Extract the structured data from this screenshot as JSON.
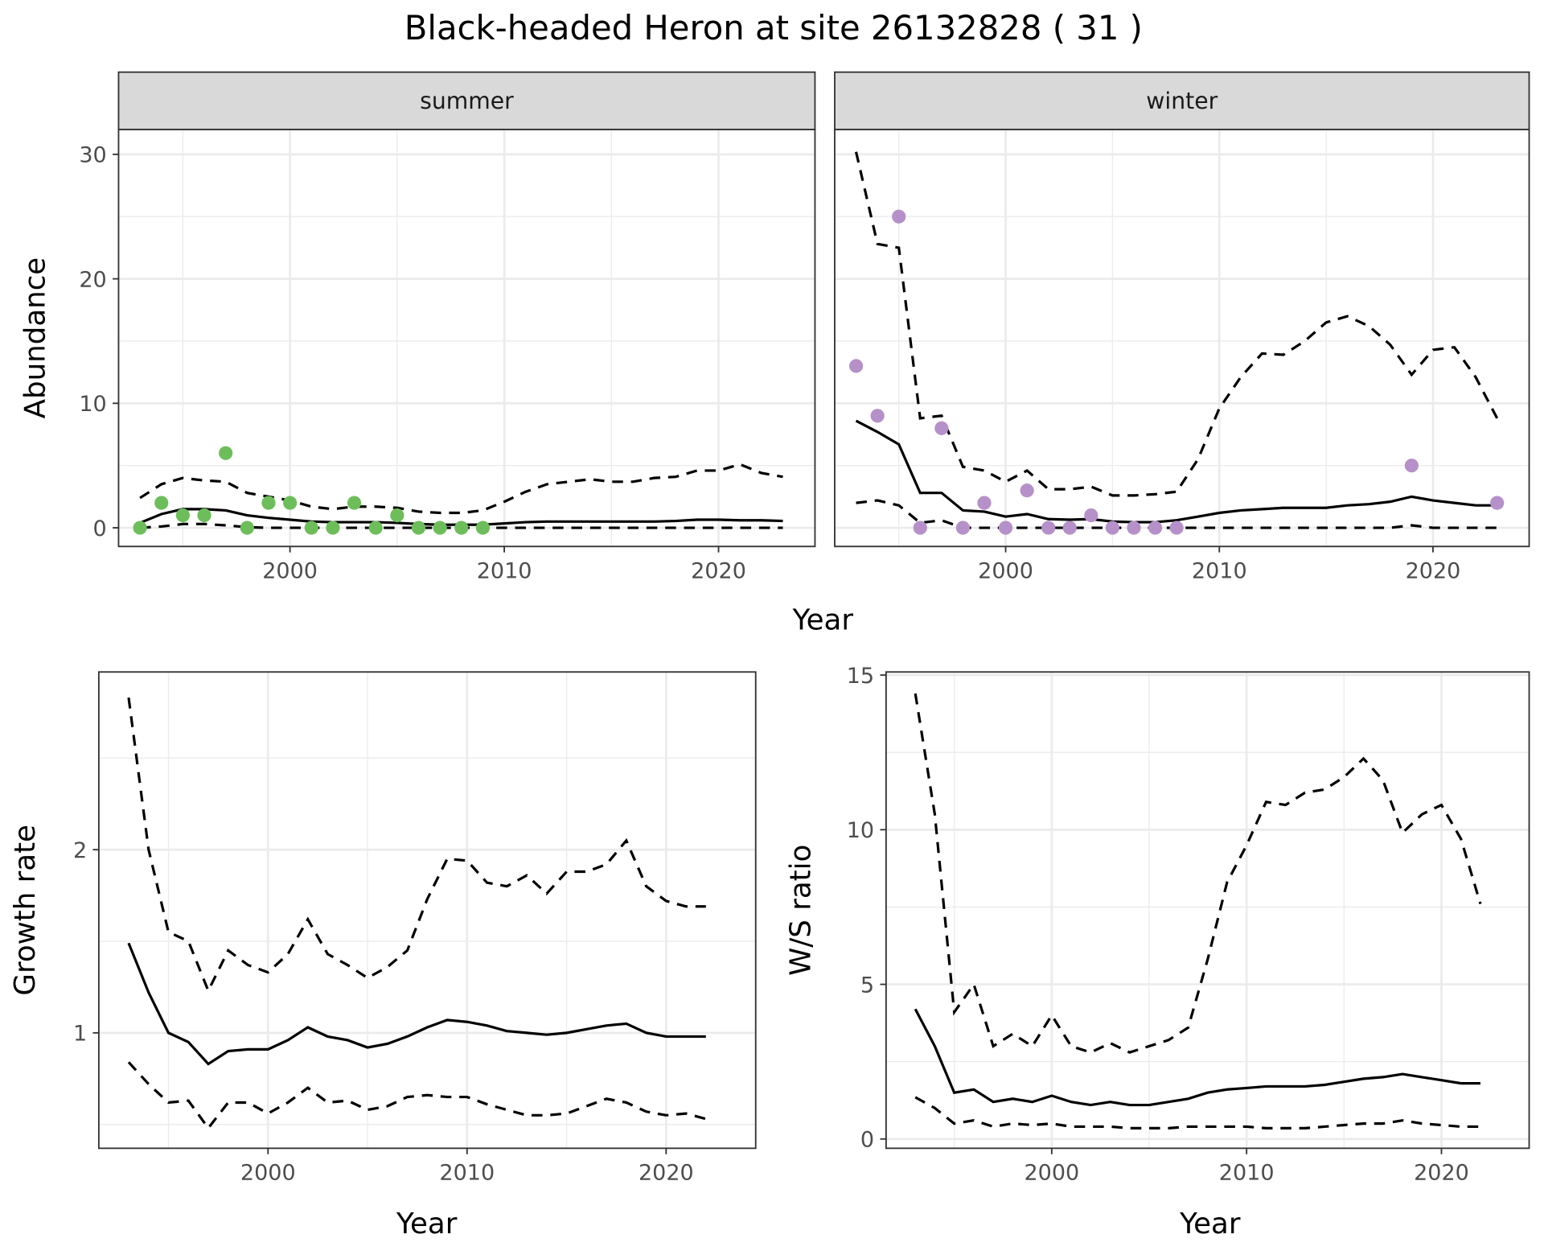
{
  "title": "Black-headed Heron at site 26132828 ( 31 )",
  "colors": {
    "summer": "#6dbe5b",
    "winter": "#b590c9",
    "grid": "#ebebeb",
    "strip": "#d9d9d9",
    "border": "#333333"
  },
  "chart_data": [
    {
      "type": "line+scatter",
      "facet": "summer",
      "xlabel": "Year",
      "ylabel": "Abundance",
      "xlim": [
        1992,
        2024.5
      ],
      "ylim": [
        -1.5,
        32
      ],
      "xticks": [
        2000,
        2010,
        2020
      ],
      "yticks": [
        0,
        10,
        20,
        30
      ],
      "grid": true,
      "years": [
        1993,
        1994,
        1995,
        1996,
        1997,
        1998,
        1999,
        2000,
        2001,
        2002,
        2003,
        2004,
        2005,
        2006,
        2007,
        2008,
        2009,
        2010,
        2011,
        2012,
        2013,
        2014,
        2015,
        2016,
        2017,
        2018,
        2019,
        2020,
        2021,
        2022,
        2023
      ],
      "mean": [
        0.4,
        1.1,
        1.5,
        1.5,
        1.4,
        1.0,
        0.8,
        0.65,
        0.5,
        0.45,
        0.45,
        0.45,
        0.4,
        0.3,
        0.25,
        0.25,
        0.25,
        0.35,
        0.45,
        0.5,
        0.5,
        0.5,
        0.5,
        0.5,
        0.5,
        0.55,
        0.65,
        0.65,
        0.6,
        0.6,
        0.55
      ],
      "upper": [
        2.4,
        3.5,
        4.0,
        3.8,
        3.7,
        2.8,
        2.5,
        2.2,
        1.7,
        1.5,
        1.7,
        1.7,
        1.6,
        1.3,
        1.2,
        1.2,
        1.4,
        2.1,
        2.9,
        3.5,
        3.7,
        3.9,
        3.7,
        3.7,
        4.0,
        4.1,
        4.6,
        4.6,
        5.1,
        4.4,
        4.1
      ],
      "lower": [
        0,
        0.1,
        0.3,
        0.3,
        0.2,
        0.05,
        0,
        0,
        0,
        0,
        0,
        0,
        0,
        0,
        0,
        0,
        0,
        0,
        0,
        0,
        0,
        0,
        0,
        0,
        0,
        0,
        0,
        0,
        0,
        0,
        0
      ],
      "points": {
        "x": [
          1993,
          1994,
          1995,
          1996,
          1997,
          1998,
          1999,
          2000,
          2001,
          2002,
          2003,
          2004,
          2005,
          2006,
          2007,
          2008,
          2009
        ],
        "y": [
          0,
          2,
          1,
          1,
          6,
          0,
          2,
          2,
          0,
          0,
          2,
          0,
          1,
          0,
          0,
          0,
          0
        ]
      }
    },
    {
      "type": "line+scatter",
      "facet": "winter",
      "xlabel": "Year",
      "ylabel": "Abundance",
      "xlim": [
        1992,
        2024.5
      ],
      "ylim": [
        -1.5,
        32
      ],
      "xticks": [
        2000,
        2010,
        2020
      ],
      "yticks": [
        0,
        10,
        20,
        30
      ],
      "grid": true,
      "years": [
        1993,
        1994,
        1995,
        1996,
        1997,
        1998,
        1999,
        2000,
        2001,
        2002,
        2003,
        2004,
        2005,
        2006,
        2007,
        2008,
        2009,
        2010,
        2011,
        2012,
        2013,
        2014,
        2015,
        2016,
        2017,
        2018,
        2019,
        2020,
        2021,
        2022,
        2023
      ],
      "mean": [
        8.6,
        7.7,
        6.7,
        2.8,
        2.8,
        1.4,
        1.3,
        0.9,
        1.1,
        0.7,
        0.65,
        0.7,
        0.5,
        0.45,
        0.45,
        0.6,
        0.9,
        1.2,
        1.4,
        1.5,
        1.6,
        1.6,
        1.6,
        1.8,
        1.9,
        2.1,
        2.5,
        2.2,
        2.0,
        1.8,
        1.8
      ],
      "upper": [
        30.2,
        22.8,
        22.5,
        8.8,
        9.0,
        4.9,
        4.6,
        3.7,
        4.6,
        3.1,
        3.1,
        3.3,
        2.6,
        2.6,
        2.7,
        2.9,
        5.5,
        9.6,
        12.1,
        14.0,
        13.9,
        15.0,
        16.5,
        17.0,
        16.2,
        14.7,
        12.3,
        14.3,
        14.5,
        12.1,
        8.8
      ],
      "lower": [
        2.0,
        2.2,
        1.8,
        0.4,
        0.6,
        0,
        0,
        0,
        0,
        0,
        0,
        0,
        0,
        0,
        0,
        0,
        0,
        0,
        0,
        0,
        0,
        0,
        0,
        0,
        0,
        0,
        0.2,
        0,
        0,
        0,
        0
      ],
      "points": {
        "x": [
          1993,
          1994,
          1995,
          1996,
          1997,
          1998,
          1999,
          2000,
          2001,
          2002,
          2003,
          2004,
          2005,
          2006,
          2007,
          2008,
          2019,
          2023
        ],
        "y": [
          13,
          9,
          25,
          0,
          8,
          0,
          2,
          0,
          3,
          0,
          0,
          1,
          0,
          0,
          0,
          0,
          5,
          2
        ]
      }
    },
    {
      "type": "line",
      "xlabel": "Year",
      "ylabel": "Growth rate",
      "xlim": [
        1991.5,
        2024.5
      ],
      "ylim": [
        0.37,
        2.97
      ],
      "xticks": [
        2000,
        2010,
        2020
      ],
      "yticks": [
        1,
        2
      ],
      "grid": true,
      "years": [
        1993,
        1994,
        1995,
        1996,
        1997,
        1998,
        1999,
        2000,
        2001,
        2002,
        2003,
        2004,
        2005,
        2006,
        2007,
        2008,
        2009,
        2010,
        2011,
        2012,
        2013,
        2014,
        2015,
        2016,
        2017,
        2018,
        2019,
        2020,
        2021,
        2022
      ],
      "mean": [
        1.49,
        1.22,
        1.0,
        0.95,
        0.83,
        0.9,
        0.91,
        0.91,
        0.96,
        1.03,
        0.98,
        0.96,
        0.92,
        0.94,
        0.98,
        1.03,
        1.07,
        1.06,
        1.04,
        1.01,
        1.0,
        0.99,
        1.0,
        1.02,
        1.04,
        1.05,
        1.0,
        0.98,
        0.98,
        0.98
      ],
      "upper": [
        2.83,
        2.0,
        1.55,
        1.5,
        1.23,
        1.45,
        1.37,
        1.33,
        1.43,
        1.62,
        1.43,
        1.37,
        1.3,
        1.36,
        1.45,
        1.73,
        1.95,
        1.94,
        1.82,
        1.8,
        1.86,
        1.76,
        1.88,
        1.88,
        1.92,
        2.05,
        1.8,
        1.72,
        1.69,
        1.69
      ],
      "lower": [
        0.84,
        0.72,
        0.62,
        0.63,
        0.48,
        0.62,
        0.62,
        0.56,
        0.62,
        0.7,
        0.62,
        0.63,
        0.58,
        0.6,
        0.65,
        0.66,
        0.65,
        0.65,
        0.61,
        0.58,
        0.55,
        0.55,
        0.56,
        0.6,
        0.64,
        0.62,
        0.57,
        0.55,
        0.56,
        0.53
      ]
    },
    {
      "type": "line",
      "xlabel": "Year",
      "ylabel": "W/S ratio",
      "xlim": [
        1991.5,
        2024.5
      ],
      "ylim": [
        -0.3,
        15.1
      ],
      "xticks": [
        2000,
        2010,
        2020
      ],
      "yticks": [
        0,
        5,
        10,
        15
      ],
      "grid": true,
      "years": [
        1993,
        1994,
        1995,
        1996,
        1997,
        1998,
        1999,
        2000,
        2001,
        2002,
        2003,
        2004,
        2005,
        2006,
        2007,
        2008,
        2009,
        2010,
        2011,
        2012,
        2013,
        2014,
        2015,
        2016,
        2017,
        2018,
        2019,
        2020,
        2021,
        2022
      ],
      "mean": [
        4.2,
        3.0,
        1.5,
        1.6,
        1.2,
        1.3,
        1.2,
        1.4,
        1.2,
        1.1,
        1.2,
        1.1,
        1.1,
        1.2,
        1.3,
        1.5,
        1.6,
        1.65,
        1.7,
        1.7,
        1.7,
        1.75,
        1.85,
        1.95,
        2.0,
        2.1,
        2.0,
        1.9,
        1.8,
        1.8
      ],
      "upper": [
        14.4,
        10.5,
        4.1,
        5.0,
        3.0,
        3.4,
        3.0,
        4.0,
        3.0,
        2.8,
        3.1,
        2.8,
        3.0,
        3.2,
        3.6,
        5.8,
        8.3,
        9.5,
        10.9,
        10.8,
        11.2,
        11.3,
        11.7,
        12.3,
        11.6,
        9.9,
        10.5,
        10.8,
        9.7,
        7.6
      ],
      "lower": [
        1.35,
        1.0,
        0.5,
        0.6,
        0.4,
        0.5,
        0.45,
        0.5,
        0.4,
        0.4,
        0.4,
        0.35,
        0.35,
        0.35,
        0.4,
        0.4,
        0.4,
        0.4,
        0.35,
        0.35,
        0.35,
        0.4,
        0.45,
        0.5,
        0.5,
        0.6,
        0.5,
        0.45,
        0.4,
        0.4
      ]
    }
  ]
}
